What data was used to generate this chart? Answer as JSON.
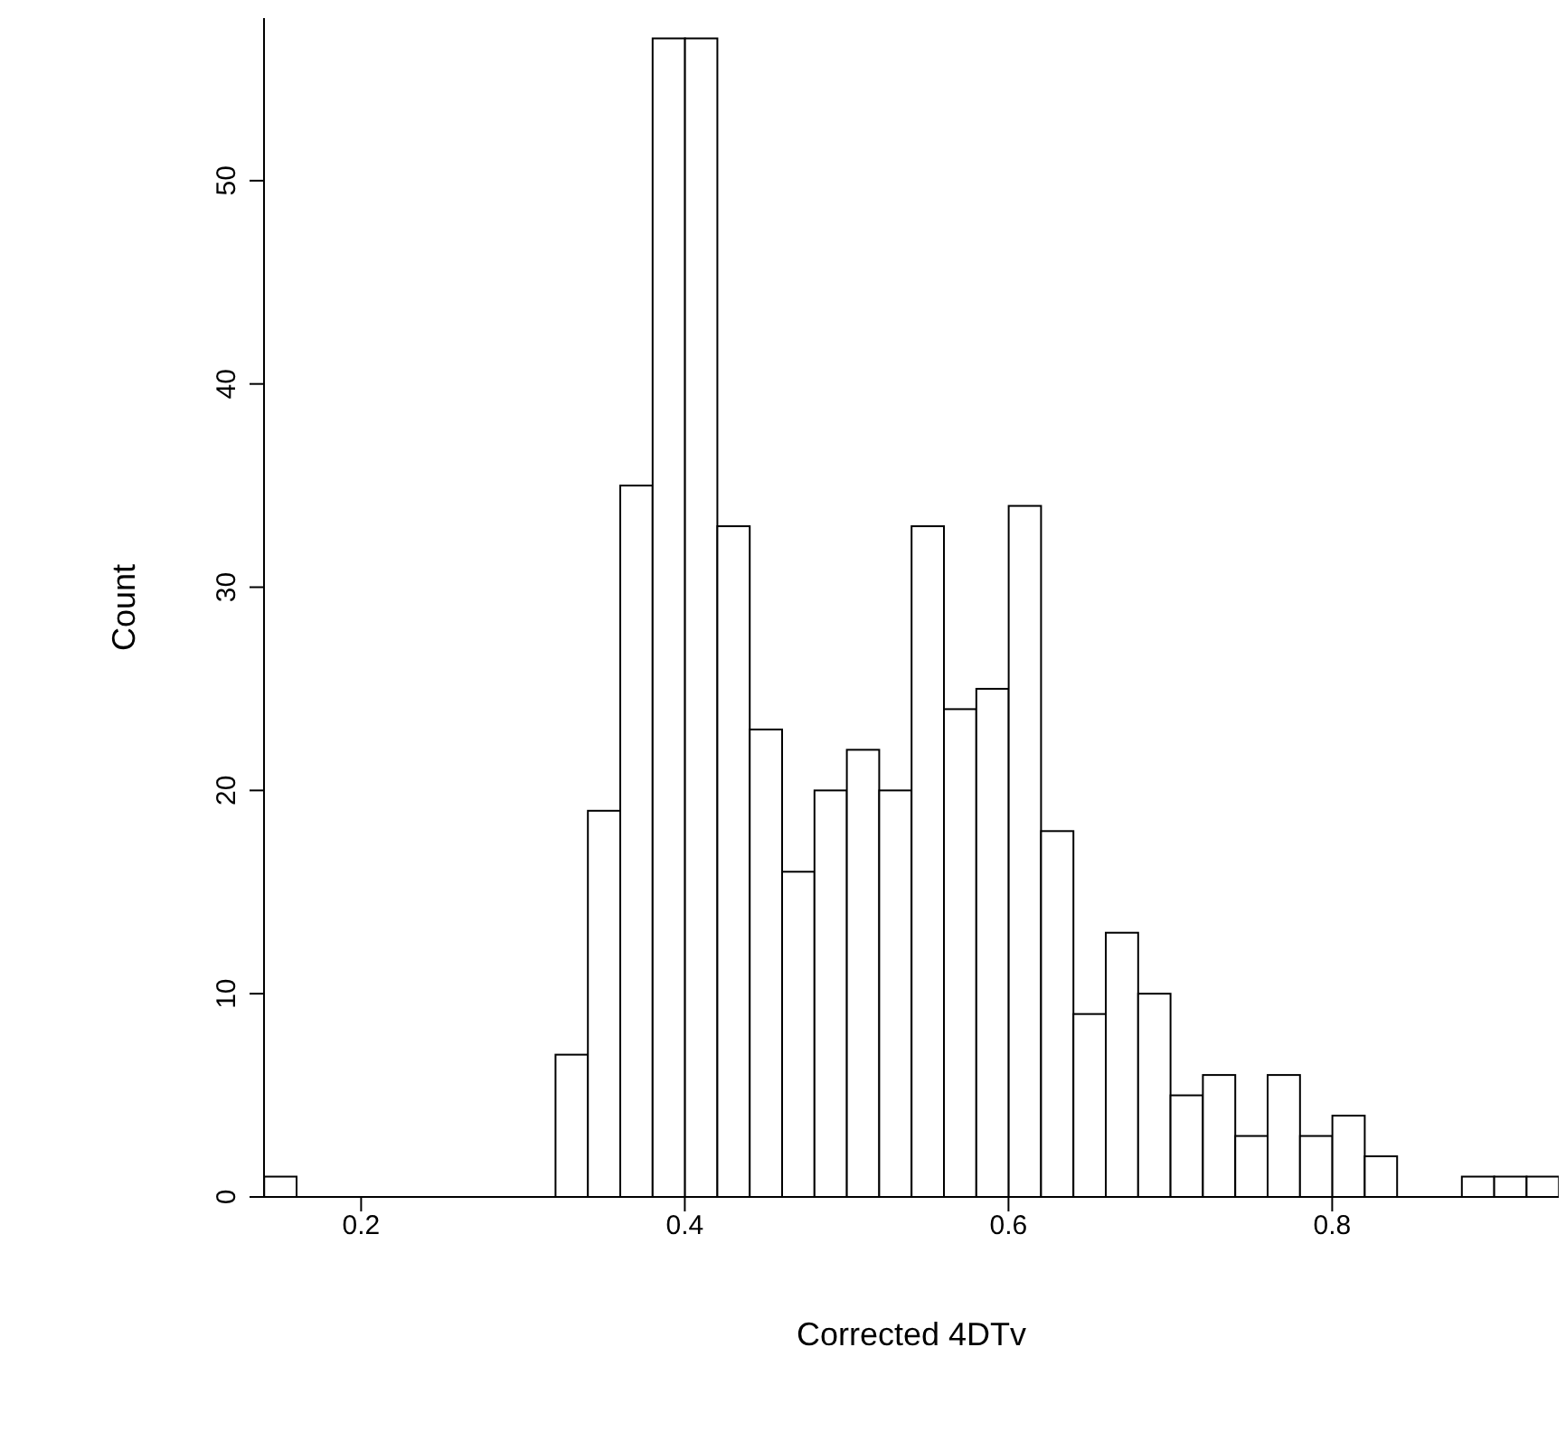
{
  "chart_data": {
    "type": "histogram",
    "xlabel": "Corrected 4DTv",
    "ylabel": "Count",
    "bins": [
      0.14,
      0.16,
      0.18,
      0.2,
      0.22,
      0.24,
      0.26,
      0.28,
      0.3,
      0.32,
      0.34,
      0.36,
      0.38,
      0.4,
      0.42,
      0.44,
      0.46,
      0.48,
      0.5,
      0.52,
      0.54,
      0.56,
      0.58,
      0.6,
      0.62,
      0.64,
      0.66,
      0.68,
      0.7,
      0.72,
      0.74,
      0.76,
      0.78,
      0.8,
      0.82,
      0.84,
      0.86,
      0.88,
      0.9,
      0.92,
      0.94
    ],
    "values": [
      1,
      0,
      0,
      0,
      0,
      0,
      0,
      0,
      0,
      7,
      19,
      35,
      57,
      57,
      33,
      23,
      16,
      20,
      22,
      20,
      33,
      24,
      25,
      34,
      18,
      9,
      13,
      10,
      5,
      6,
      3,
      6,
      3,
      4,
      2,
      0,
      0,
      1,
      1,
      1
    ],
    "color": "#ffffff",
    "xlim": [
      0.14,
      0.94
    ],
    "xticks": [
      0.2,
      0.4,
      0.6,
      0.8
    ],
    "ylim": [
      0,
      58
    ],
    "yticks": [
      0,
      10,
      20,
      30,
      40,
      50
    ],
    "grid": false,
    "legend": false
  }
}
